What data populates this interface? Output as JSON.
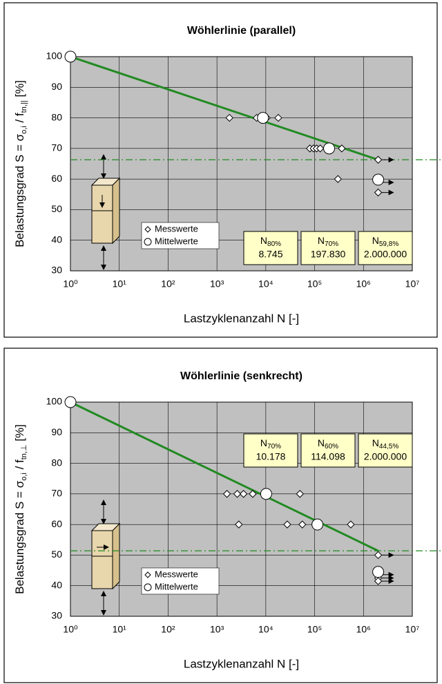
{
  "chart_data": [
    {
      "type": "scatter",
      "title": "Wöhlerlinie (parallel)",
      "x_label": "Lastzyklenanzahl N  [-]",
      "y_label": [
        "Belastungsgrad S = σ",
        "o,i",
        " / f",
        "tn,||",
        "  [%]"
      ],
      "x_scale": "log",
      "xlim": [
        1,
        10000000
      ],
      "xticks": [
        {
          "value": 1,
          "label": "10⁰"
        },
        {
          "value": 10,
          "label": "10¹"
        },
        {
          "value": 100,
          "label": "10²"
        },
        {
          "value": 1000,
          "label": "10³"
        },
        {
          "value": 10000,
          "label": "10⁴"
        },
        {
          "value": 100000,
          "label": "10⁵"
        },
        {
          "value": 1000000,
          "label": "10⁶"
        },
        {
          "value": 10000000,
          "label": "10⁷"
        }
      ],
      "ylim": [
        30,
        100
      ],
      "yticks": [
        30,
        40,
        50,
        60,
        70,
        80,
        90,
        100
      ],
      "grid": true,
      "legend": "bottom-left",
      "series": [
        {
          "name": "Messwerte",
          "marker": "diamond",
          "color": "#000000",
          "x": [
            1800,
            6500,
            10500,
            18000,
            80000,
            95000,
            110000,
            130000,
            360000,
            300000,
            2000000,
            2000000
          ],
          "values": [
            80,
            80,
            80,
            80,
            70,
            70,
            70,
            70,
            70,
            60,
            66.3,
            55.6
          ],
          "runout": [
            false,
            false,
            false,
            false,
            false,
            false,
            false,
            false,
            false,
            false,
            true,
            true
          ]
        },
        {
          "name": "Mittelwerte",
          "marker": "circle",
          "color": "#000000",
          "x": [
            1,
            8745,
            197830,
            2000000
          ],
          "values": [
            100,
            80,
            70,
            59.8
          ],
          "runout": [
            false,
            false,
            false,
            true
          ]
        }
      ],
      "fit_line": {
        "x": [
          1,
          2000000
        ],
        "y": [
          100,
          66.3
        ],
        "color": "#218a21"
      },
      "reference_line": {
        "value": 66.3,
        "color": "#218a21"
      },
      "annotation_position": "bottom-right",
      "annotations": [
        {
          "label": "N",
          "subscript": "80%",
          "text": "8.745"
        },
        {
          "label": "N",
          "subscript": "70%",
          "text": "197.830"
        },
        {
          "label": "N",
          "subscript": "59,8%",
          "text": "2.000.000"
        }
      ]
    },
    {
      "type": "scatter",
      "title": "Wöhlerlinie (senkrecht)",
      "x_label": "Lastzyklenanzahl N  [-]",
      "y_label": [
        "Belastungsgrad S = σ",
        "o,i",
        " / f",
        "tn,⊥",
        "  [%]"
      ],
      "x_scale": "log",
      "xlim": [
        1,
        10000000
      ],
      "xticks": [
        {
          "value": 1,
          "label": "10⁰"
        },
        {
          "value": 10,
          "label": "10¹"
        },
        {
          "value": 100,
          "label": "10²"
        },
        {
          "value": 1000,
          "label": "10³"
        },
        {
          "value": 10000,
          "label": "10⁴"
        },
        {
          "value": 100000,
          "label": "10⁵"
        },
        {
          "value": 1000000,
          "label": "10⁶"
        },
        {
          "value": 10000000,
          "label": "10⁷"
        }
      ],
      "ylim": [
        30,
        100
      ],
      "yticks": [
        30,
        40,
        50,
        60,
        70,
        80,
        90,
        100
      ],
      "grid": true,
      "legend": "bottom-left",
      "series": [
        {
          "name": "Messwerte",
          "marker": "diamond",
          "color": "#000000",
          "x": [
            1600,
            2600,
            3500,
            5400,
            50000,
            2800,
            27500,
            56000,
            550000,
            2000000,
            2000000,
            2000000
          ],
          "values": [
            70,
            70,
            70,
            70,
            70,
            60,
            60,
            60,
            60,
            50,
            42.5,
            41.5
          ],
          "runout": [
            false,
            false,
            false,
            false,
            false,
            false,
            false,
            false,
            false,
            true,
            true,
            true
          ]
        },
        {
          "name": "Mittelwerte",
          "marker": "circle",
          "color": "#000000",
          "x": [
            1,
            10178,
            114098,
            2000000
          ],
          "values": [
            100,
            70,
            60,
            44.5
          ],
          "runout": [
            false,
            false,
            false,
            true
          ]
        }
      ],
      "fit_line": {
        "x": [
          1,
          2000000
        ],
        "y": [
          100,
          51.4
        ],
        "color": "#218a21"
      },
      "reference_line": {
        "value": 51.4,
        "color": "#218a21"
      },
      "annotation_position": "top-right",
      "annotations": [
        {
          "label": "N",
          "subscript": "70%",
          "text": "10.178"
        },
        {
          "label": "N",
          "subscript": "60%",
          "text": "114.098"
        },
        {
          "label": "N",
          "subscript": "44,5%",
          "text": "2.000.000"
        }
      ]
    }
  ]
}
